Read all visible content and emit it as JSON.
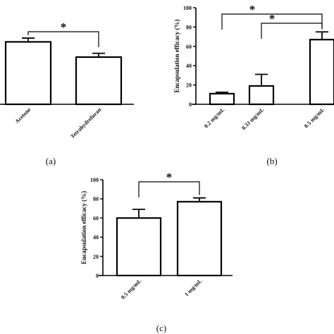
{
  "chart_data": [
    {
      "panel_label": "(a)",
      "type": "bar",
      "categories": [
        "Acetone",
        "Tetrahydrofuran"
      ],
      "values": [
        82,
        62
      ],
      "errors": [
        5,
        5
      ],
      "ylabel": "",
      "ylim": [
        0,
        100
      ],
      "yticks": [],
      "significance": [
        {
          "from": 0,
          "to": 1,
          "label": "*"
        }
      ]
    },
    {
      "panel_label": "(b)",
      "type": "bar",
      "categories": [
        "0.2 mg/mL",
        "0.33 mg/mL",
        "0.5 mg/mL"
      ],
      "values": [
        11,
        19,
        67
      ],
      "errors": [
        1.5,
        12,
        8
      ],
      "ylabel": "Encapsulation efficacy (%)",
      "ylim": [
        0,
        100
      ],
      "yticks": [
        "0",
        "20",
        "40",
        "60",
        "80",
        "100"
      ],
      "significance": [
        {
          "from": 0,
          "to": 2,
          "label": "*"
        },
        {
          "from": 1,
          "to": 2,
          "label": "*"
        }
      ]
    },
    {
      "panel_label": "(c)",
      "type": "bar",
      "categories": [
        "0.5 mg/mL",
        "1 mg/mL"
      ],
      "values": [
        60,
        77
      ],
      "errors": [
        9,
        4
      ],
      "ylabel": "Encapsulation efficacy (%)",
      "ylim": [
        0,
        100
      ],
      "yticks": [
        "0",
        "20",
        "40",
        "60",
        "80",
        "100"
      ],
      "significance": [
        {
          "from": 0,
          "to": 1,
          "label": "*"
        }
      ]
    }
  ]
}
